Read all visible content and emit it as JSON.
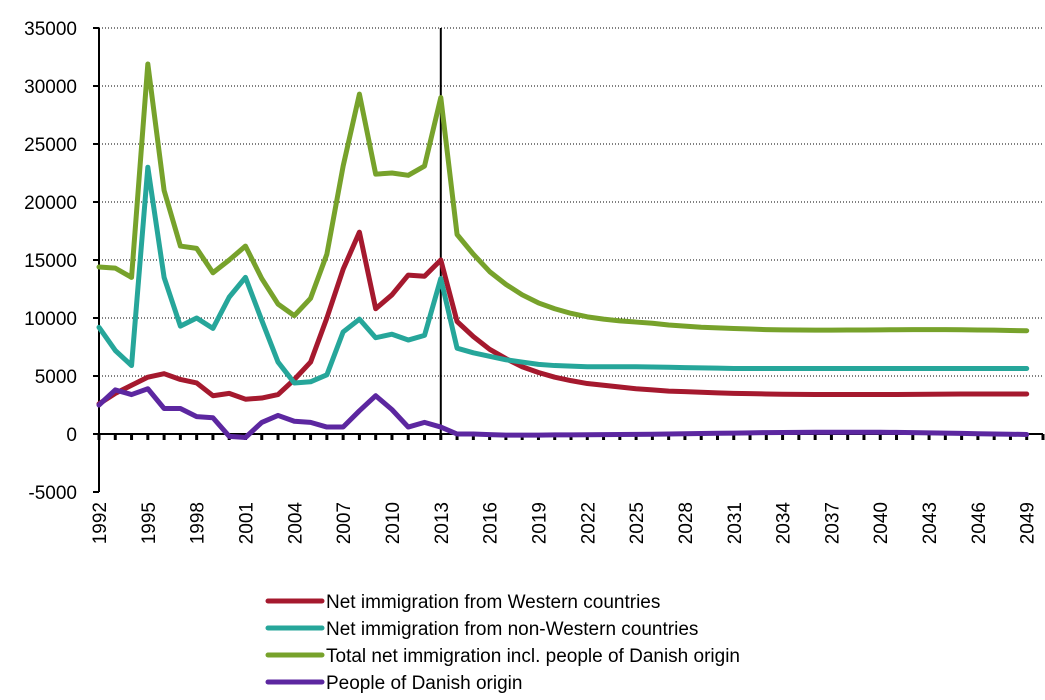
{
  "chart_data": {
    "type": "line",
    "title": "",
    "xlabel": "",
    "ylabel": "",
    "ylim": [
      -5000,
      35000
    ],
    "yticks": [
      -5000,
      0,
      5000,
      10000,
      15000,
      20000,
      25000,
      30000,
      35000
    ],
    "ytick_labels": [
      "-5000",
      "0",
      "5000",
      "10000",
      "15000",
      "20000",
      "25000",
      "30000",
      "35000"
    ],
    "x_range": [
      1992,
      2050
    ],
    "xtick_labels": [
      "1992",
      "1995",
      "1998",
      "2001",
      "2004",
      "2007",
      "2010",
      "2013",
      "2016",
      "2019",
      "2022",
      "2025",
      "2028",
      "2031",
      "2034",
      "2037",
      "2040",
      "2043",
      "2046",
      "2049"
    ],
    "grid": "horizontal dotted",
    "legend_position": "bottom",
    "forecast_divider_year": 2013,
    "series": [
      {
        "name": "Net immigration from Western countries",
        "color": "#a5192e",
        "values": [
          2600,
          3500,
          4200,
          4900,
          5200,
          4700,
          4400,
          3300,
          3500,
          3000,
          3100,
          3400,
          4700,
          6200,
          10000,
          14200,
          17400,
          10800,
          12000,
          13700,
          13600,
          15000,
          9700,
          8400,
          7300,
          6500,
          5800,
          5300,
          4900,
          4600,
          4350,
          4200,
          4050,
          3900,
          3800,
          3700,
          3650,
          3600,
          3550,
          3500,
          3480,
          3450,
          3430,
          3420,
          3410,
          3400,
          3400,
          3400,
          3400,
          3410,
          3420,
          3430,
          3440,
          3450,
          3450,
          3450,
          3450,
          3450
        ]
      },
      {
        "name": "Net immigration from non-Western countries",
        "color": "#26a69a",
        "values": [
          9200,
          7200,
          5900,
          23000,
          13500,
          9300,
          10000,
          9100,
          11800,
          13500,
          9800,
          6200,
          4400,
          4500,
          5100,
          8800,
          9900,
          8300,
          8600,
          8100,
          8500,
          13400,
          7400,
          7000,
          6700,
          6400,
          6200,
          6000,
          5900,
          5850,
          5800,
          5800,
          5800,
          5800,
          5780,
          5750,
          5720,
          5700,
          5680,
          5650,
          5650,
          5650,
          5650,
          5650,
          5650,
          5650,
          5650,
          5650,
          5650,
          5650,
          5650,
          5650,
          5650,
          5650,
          5650,
          5650,
          5650,
          5650
        ]
      },
      {
        "name": "Total net immigration incl. people of Danish origin",
        "color": "#77a22b",
        "values": [
          14400,
          14300,
          13500,
          31900,
          21000,
          16200,
          16000,
          13900,
          15000,
          16200,
          13400,
          11200,
          10200,
          11700,
          15500,
          23100,
          29300,
          22400,
          22500,
          22300,
          23100,
          29000,
          17200,
          15500,
          14000,
          12900,
          12000,
          11300,
          10800,
          10400,
          10100,
          9900,
          9750,
          9650,
          9550,
          9400,
          9300,
          9200,
          9150,
          9100,
          9050,
          9000,
          8980,
          8960,
          8950,
          8950,
          8960,
          8970,
          8980,
          8990,
          9000,
          9000,
          9000,
          8990,
          8970,
          8950,
          8920,
          8900
        ]
      },
      {
        "name": "People of Danish origin",
        "color": "#5c27a0",
        "values": [
          2500,
          3800,
          3400,
          3900,
          2200,
          2200,
          1500,
          1400,
          -200,
          -300,
          1000,
          1600,
          1100,
          1000,
          600,
          600,
          2000,
          3300,
          2100,
          600,
          1000,
          600,
          0,
          0,
          -50,
          -100,
          -100,
          -100,
          -80,
          -80,
          -60,
          -50,
          -40,
          -30,
          -20,
          0,
          20,
          40,
          60,
          80,
          100,
          120,
          130,
          140,
          150,
          150,
          150,
          150,
          150,
          140,
          120,
          100,
          80,
          50,
          20,
          0,
          -20,
          -40
        ]
      }
    ]
  }
}
